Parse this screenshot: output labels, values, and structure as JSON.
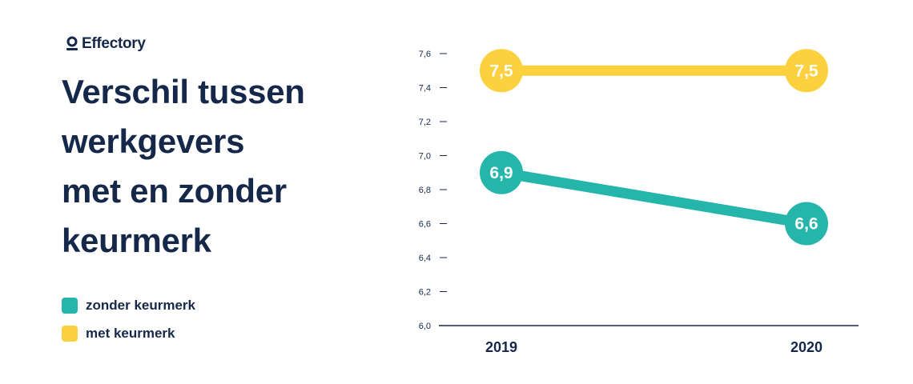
{
  "brand": {
    "name": "Effectory"
  },
  "title_lines": [
    "Verschil tussen",
    "werkgevers",
    "met en zonder",
    "keurmerk"
  ],
  "colors": {
    "text": "#16284a",
    "teal": "#26b5ab",
    "yellow": "#fdd03d",
    "axis": "#16284a"
  },
  "chart_data": {
    "type": "line",
    "x": [
      "2019",
      "2020"
    ],
    "ylim": [
      6.0,
      7.6
    ],
    "y_ticks": [
      "6,0",
      "6,2",
      "6,4",
      "6,6",
      "6,8",
      "7,0",
      "7,2",
      "7,4",
      "7,6"
    ],
    "legend_position": "left",
    "series": [
      {
        "name": "zonder keurmerk",
        "color": "#26b5ab",
        "values": [
          6.9,
          6.6
        ],
        "labels": [
          "6,9",
          "6,6"
        ]
      },
      {
        "name": "met keurmerk",
        "color": "#fdd03d",
        "values": [
          7.5,
          7.5
        ],
        "labels": [
          "7,5",
          "7,5"
        ]
      }
    ]
  }
}
